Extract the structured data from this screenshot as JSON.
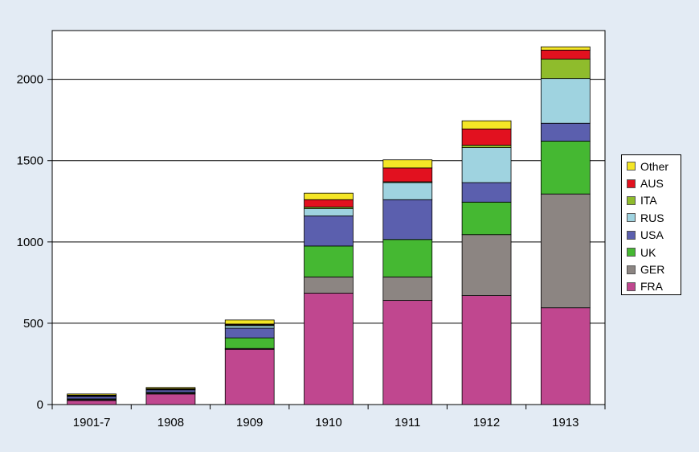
{
  "chart_data": {
    "type": "bar",
    "stacked": true,
    "categories": [
      "1901-7",
      "1908",
      "1909",
      "1910",
      "1911",
      "1912",
      "1913"
    ],
    "ylim": [
      0,
      2300
    ],
    "yticks": [
      0,
      500,
      1000,
      1500,
      2000
    ],
    "grid": true,
    "legend_position": "right",
    "title": "",
    "xlabel": "",
    "ylabel": "",
    "series": [
      {
        "name": "FRA",
        "color": "#c0478f",
        "values": [
          25,
          65,
          340,
          685,
          640,
          670,
          595
        ]
      },
      {
        "name": "GER",
        "color": "#8c8582",
        "values": [
          5,
          5,
          5,
          100,
          145,
          375,
          700
        ]
      },
      {
        "name": "UK",
        "color": "#45b832",
        "values": [
          5,
          5,
          65,
          190,
          230,
          200,
          325
        ]
      },
      {
        "name": "USA",
        "color": "#5b5fae",
        "values": [
          15,
          15,
          60,
          185,
          245,
          120,
          110
        ]
      },
      {
        "name": "RUS",
        "color": "#9fd3e0",
        "values": [
          3,
          3,
          15,
          45,
          105,
          215,
          275
        ]
      },
      {
        "name": "ITA",
        "color": "#8fbc2c",
        "values": [
          2,
          2,
          5,
          10,
          5,
          15,
          120
        ]
      },
      {
        "name": "AUS",
        "color": "#e2111f",
        "values": [
          3,
          3,
          5,
          45,
          85,
          100,
          55
        ]
      },
      {
        "name": "Other",
        "color": "#f4e626",
        "values": [
          7,
          7,
          25,
          40,
          50,
          50,
          20
        ]
      }
    ]
  }
}
